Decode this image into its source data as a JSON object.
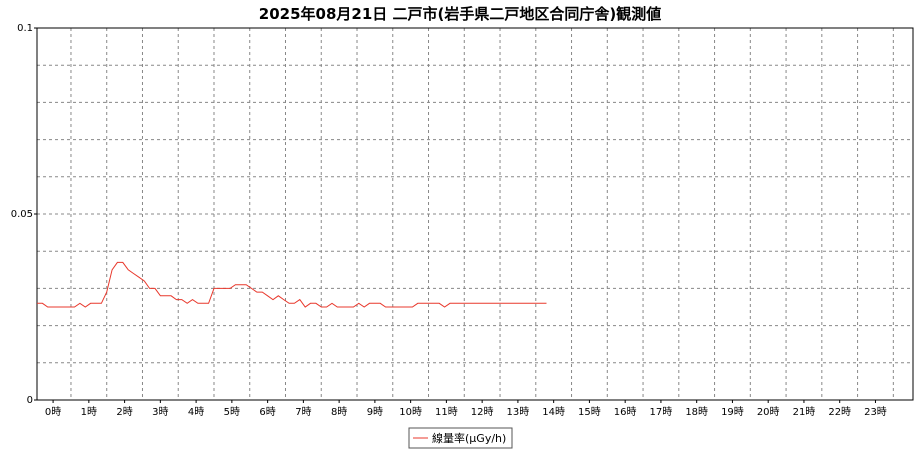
{
  "chart_data": {
    "type": "line",
    "title": "2025年08月21日 二戸市(岩手県二戸地区合同庁舎)観測値",
    "ylim": [
      0,
      0.1
    ],
    "y_ticks": [
      "0",
      "0.05",
      "0.1"
    ],
    "y_minor_step": 0.01,
    "x_range_hours": [
      -0.45,
      24.05
    ],
    "x_tick_labels": [
      "0時",
      "1時",
      "2時",
      "3時",
      "4時",
      "5時",
      "6時",
      "7時",
      "8時",
      "9時",
      "10時",
      "11時",
      "12時",
      "13時",
      "14時",
      "15時",
      "16時",
      "17時",
      "18時",
      "19時",
      "20時",
      "21時",
      "22時",
      "23時"
    ],
    "grid": true,
    "legend_position": "bottom-center",
    "series": [
      {
        "name": "線量率(μGy/h)",
        "color": "#e8382c",
        "x": [
          -0.45,
          -0.3,
          -0.15,
          0,
          0.15,
          0.3,
          0.45,
          0.6,
          0.75,
          0.9,
          1.05,
          1.2,
          1.35,
          1.5,
          1.65,
          1.8,
          1.95,
          2.1,
          2.25,
          2.4,
          2.55,
          2.7,
          2.85,
          3,
          3.15,
          3.3,
          3.45,
          3.6,
          3.75,
          3.9,
          4.05,
          4.2,
          4.35,
          4.5,
          4.65,
          4.8,
          4.95,
          5.1,
          5.25,
          5.4,
          5.55,
          5.7,
          5.85,
          6,
          6.15,
          6.3,
          6.45,
          6.6,
          6.75,
          6.9,
          7.05,
          7.2,
          7.35,
          7.5,
          7.65,
          7.8,
          7.95,
          8.1,
          8.25,
          8.4,
          8.55,
          8.7,
          8.85,
          9,
          9.15,
          9.3,
          9.45,
          9.6,
          9.75,
          9.9,
          10.05,
          10.2,
          10.35,
          10.5,
          10.65,
          10.8,
          10.95,
          11.1,
          11.25,
          11.4,
          11.55,
          11.7,
          11.85,
          12,
          12.15,
          12.3,
          12.45,
          12.6,
          12.75,
          12.9,
          13.05,
          13.2,
          13.35,
          13.5,
          13.65,
          13.8
        ],
        "values": [
          0.026,
          0.026,
          0.025,
          0.025,
          0.025,
          0.025,
          0.025,
          0.025,
          0.026,
          0.025,
          0.026,
          0.026,
          0.026,
          0.029,
          0.035,
          0.037,
          0.037,
          0.035,
          0.034,
          0.033,
          0.032,
          0.03,
          0.03,
          0.028,
          0.028,
          0.028,
          0.027,
          0.027,
          0.026,
          0.027,
          0.026,
          0.026,
          0.026,
          0.03,
          0.03,
          0.03,
          0.03,
          0.031,
          0.031,
          0.031,
          0.03,
          0.029,
          0.029,
          0.028,
          0.027,
          0.028,
          0.027,
          0.026,
          0.026,
          0.027,
          0.025,
          0.026,
          0.026,
          0.025,
          0.025,
          0.026,
          0.025,
          0.025,
          0.025,
          0.025,
          0.026,
          0.025,
          0.026,
          0.026,
          0.026,
          0.025,
          0.025,
          0.025,
          0.025,
          0.025,
          0.025,
          0.026,
          0.026,
          0.026,
          0.026,
          0.026,
          0.025,
          0.026,
          0.026,
          0.026,
          0.026,
          0.026,
          0.026,
          0.026,
          0.026,
          0.026,
          0.026,
          0.026,
          0.026,
          0.026,
          0.026,
          0.026,
          0.026,
          0.026,
          0.026,
          0.026
        ]
      }
    ]
  }
}
